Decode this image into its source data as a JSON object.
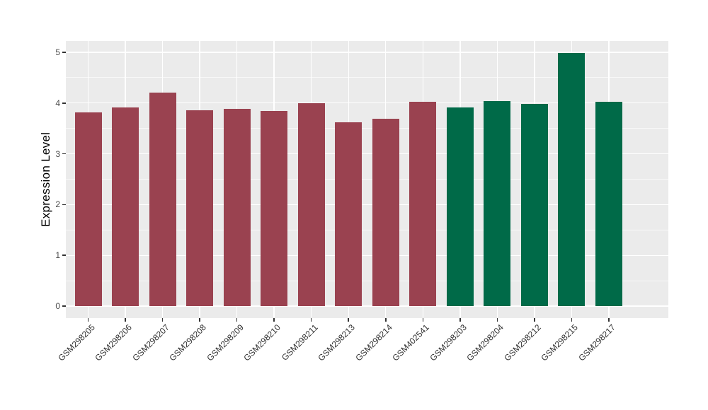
{
  "chart_data": {
    "type": "bar",
    "title": "",
    "xlabel": "",
    "ylabel": "Expression Level",
    "ylim": [
      0,
      5
    ],
    "yticks": [
      0,
      1,
      2,
      3,
      4,
      5
    ],
    "yticks_minor": [
      0.5,
      1.5,
      2.5,
      3.5,
      4.5
    ],
    "grid": true,
    "legend_position": "none",
    "panel_bg": "#EBEBEB",
    "grid_color": "#FFFFFF",
    "tick_color": "#333333",
    "groups": [
      {
        "name": "group-red",
        "color": "#9A4250"
      },
      {
        "name": "group-green",
        "color": "#006A48"
      }
    ],
    "categories": [
      "GSM298205",
      "GSM298206",
      "GSM298207",
      "GSM298208",
      "GSM298209",
      "GSM298210",
      "GSM298211",
      "GSM298213",
      "GSM298214",
      "GSM402541",
      "GSM298203",
      "GSM298204",
      "GSM298212",
      "GSM298215",
      "GSM298217"
    ],
    "bars": [
      {
        "label": "GSM298205",
        "value": 3.82,
        "group": 0
      },
      {
        "label": "GSM298206",
        "value": 3.91,
        "group": 0
      },
      {
        "label": "GSM298207",
        "value": 4.2,
        "group": 0
      },
      {
        "label": "GSM298208",
        "value": 3.86,
        "group": 0
      },
      {
        "label": "GSM298209",
        "value": 3.88,
        "group": 0
      },
      {
        "label": "GSM298210",
        "value": 3.85,
        "group": 0
      },
      {
        "label": "GSM298211",
        "value": 4.0,
        "group": 0
      },
      {
        "label": "GSM298213",
        "value": 3.62,
        "group": 0
      },
      {
        "label": "GSM298214",
        "value": 3.69,
        "group": 0
      },
      {
        "label": "GSM402541",
        "value": 4.03,
        "group": 0
      },
      {
        "label": "GSM298203",
        "value": 3.91,
        "group": 1
      },
      {
        "label": "GSM298204",
        "value": 4.04,
        "group": 1
      },
      {
        "label": "GSM298212",
        "value": 3.98,
        "group": 1
      },
      {
        "label": "GSM298215",
        "value": 4.99,
        "group": 1
      },
      {
        "label": "GSM298217",
        "value": 4.03,
        "group": 1
      }
    ]
  }
}
